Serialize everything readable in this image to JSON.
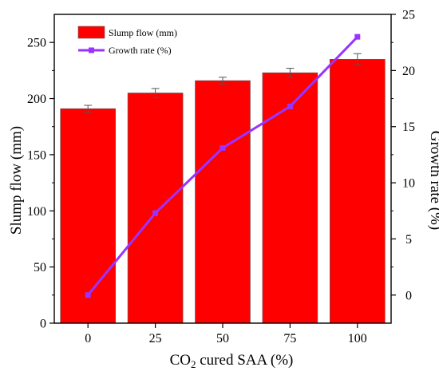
{
  "chart_data": {
    "type": "bar+line",
    "categories": [
      "0",
      "25",
      "50",
      "75",
      "100"
    ],
    "xlabel_main": "CO",
    "xlabel_sub": "2",
    "xlabel_rest": " cured SAA (%)",
    "ylabel_left": "Slump flow (mm)",
    "ylabel_right": "Growth rate (%)",
    "ylim_left": [
      0,
      275
    ],
    "ylim_right": [
      -2.5,
      25
    ],
    "left_ticks": [
      0,
      50,
      100,
      150,
      200,
      250
    ],
    "right_ticks": [
      0,
      5,
      10,
      15,
      20,
      25
    ],
    "series": [
      {
        "name": "Slump flow (mm)",
        "kind": "bar",
        "axis": "left",
        "values": [
          191,
          205,
          216,
          223,
          235
        ],
        "errors": [
          3,
          4,
          3,
          4,
          5
        ],
        "color": "#ff0000"
      },
      {
        "name": "Growth rate (%)",
        "kind": "line",
        "axis": "right",
        "values": [
          0,
          7.3,
          13.1,
          16.8,
          23.0
        ],
        "color": "#9933ff"
      }
    ],
    "legend_position": "top-left",
    "grid": false
  }
}
